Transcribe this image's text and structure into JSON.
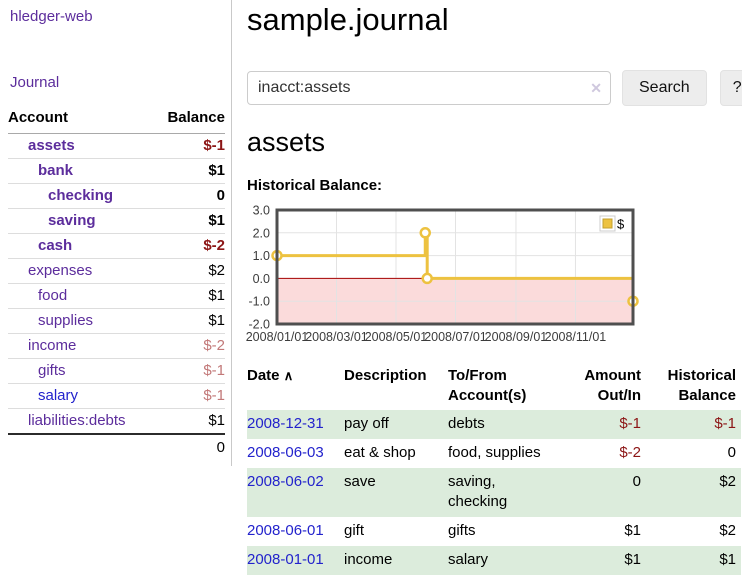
{
  "colors": {
    "link_purple": "#5c2d9c",
    "link_blue": "#2323cc",
    "negative_strong": "#8c1515",
    "negative_soft": "#c27878",
    "row_green": "#dcecdc",
    "chart_line": "#edc240",
    "chart_negative_fill": "#fbdbdb",
    "chart_zero_line": "#a40000",
    "chart_border": "#4f4f4f",
    "chart_grid": "#e3e3e3"
  },
  "app": {
    "brand": "hledger-web",
    "nav": {
      "journal": "Journal"
    }
  },
  "icons": {
    "sort_asc": "∧",
    "clear": "✕"
  },
  "sidebar": {
    "columns": {
      "account": "Account",
      "balance": "Balance"
    },
    "accounts": [
      {
        "name": "assets",
        "level": 1,
        "bold": true,
        "balance": "$-1",
        "neg": "strong"
      },
      {
        "name": "bank",
        "level": 2,
        "bold": true,
        "balance": "$1"
      },
      {
        "name": "checking",
        "level": 3,
        "bold": true,
        "balance": "0"
      },
      {
        "name": "saving",
        "level": 3,
        "bold": true,
        "balance": "$1"
      },
      {
        "name": "cash",
        "level": 2,
        "bold": true,
        "balance": "$-2",
        "neg": "strong"
      },
      {
        "name": "expenses",
        "level": 1,
        "bold": false,
        "balance": "$2"
      },
      {
        "name": "food",
        "level": 2,
        "bold": false,
        "balance": "$1"
      },
      {
        "name": "supplies",
        "level": 2,
        "bold": false,
        "balance": "$1"
      },
      {
        "name": "income",
        "level": 1,
        "bold": false,
        "balance": "$-2",
        "neg": "soft"
      },
      {
        "name": "gifts",
        "level": 2,
        "bold": false,
        "balance": "$-1",
        "neg": "soft"
      },
      {
        "name": "salary",
        "level": 2,
        "bold": false,
        "balance": "$-1",
        "neg": "soft",
        "blue": true
      },
      {
        "name": "liabilities:debts",
        "level": 1,
        "bold": false,
        "balance": "$1"
      }
    ],
    "total": "0"
  },
  "main": {
    "title": "sample.journal",
    "search": {
      "value": "inacct:assets",
      "button": "Search",
      "help": "?"
    },
    "account_heading": "assets",
    "chart_label": "Historical Balance:"
  },
  "chart_data": {
    "type": "line",
    "step": true,
    "legend": "$",
    "legend_position": "top-right",
    "grid": true,
    "title": "",
    "xlabel": "",
    "ylabel": "",
    "ylim": [
      -2,
      3
    ],
    "x_domain_days": [
      0,
      365
    ],
    "points": [
      {
        "date": "2008-01-01",
        "x": 0,
        "y": 1
      },
      {
        "date": "2008-06-01",
        "x": 152,
        "y": 2
      },
      {
        "date": "2008-06-03",
        "x": 154,
        "y": 0
      },
      {
        "date": "2008-12-31",
        "x": 365,
        "y": -1
      }
    ],
    "yticks": [
      {
        "v": 3,
        "label": "3.0"
      },
      {
        "v": 2,
        "label": "2.0"
      },
      {
        "v": 1,
        "label": "1.0"
      },
      {
        "v": 0,
        "label": "0.0"
      },
      {
        "v": -1,
        "label": "-1.0"
      },
      {
        "v": -2,
        "label": "-2.0"
      }
    ],
    "xticks": [
      {
        "x": 0,
        "label": "2008/01/01"
      },
      {
        "x": 61,
        "label": "2008/03/01"
      },
      {
        "x": 122,
        "label": "2008/05/01"
      },
      {
        "x": 183,
        "label": "2008/07/01"
      },
      {
        "x": 245,
        "label": "2008/09/01"
      },
      {
        "x": 306,
        "label": "2008/11/01"
      }
    ]
  },
  "register": {
    "columns": {
      "date": "Date",
      "description": "Description",
      "accounts": "To/From Account(s)",
      "amount": "Amount Out/In",
      "balance": "Historical Balance"
    },
    "rows": [
      {
        "date": "2008-12-31",
        "description": "pay off",
        "accounts": "debts",
        "amount": "$-1",
        "amount_neg": true,
        "balance": "$-1",
        "balance_neg": true
      },
      {
        "date": "2008-06-03",
        "description": "eat & shop",
        "accounts": "food, supplies",
        "amount": "$-2",
        "amount_neg": true,
        "balance": "0"
      },
      {
        "date": "2008-06-02",
        "description": "save",
        "accounts": "saving, checking",
        "amount": "0",
        "balance": "$2"
      },
      {
        "date": "2008-06-01",
        "description": "gift",
        "accounts": "gifts",
        "amount": "$1",
        "balance": "$2"
      },
      {
        "date": "2008-01-01",
        "description": "income",
        "accounts": "salary",
        "amount": "$1",
        "balance": "$1"
      }
    ]
  }
}
